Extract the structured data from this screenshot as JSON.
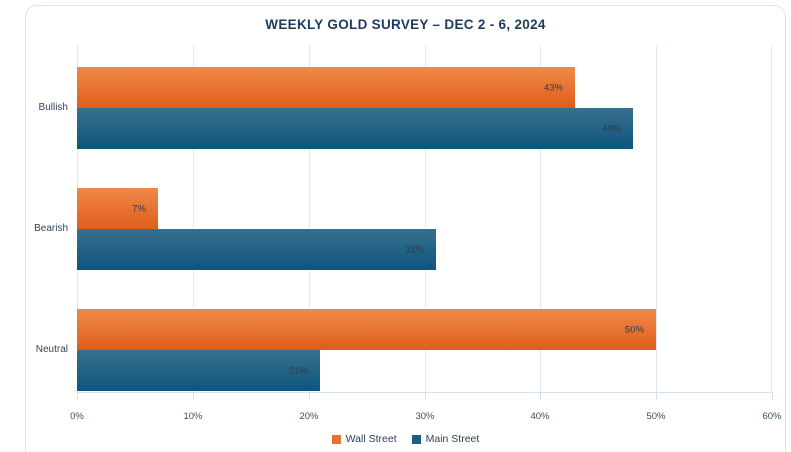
{
  "title": "WEEKLY GOLD SURVEY – DEC 2 - 6, 2024",
  "chart_data": {
    "type": "bar",
    "orientation": "horizontal",
    "title": "WEEKLY GOLD SURVEY – DEC 2 - 6, 2024",
    "categories": [
      "Bullish",
      "Bearish",
      "Neutral"
    ],
    "series": [
      {
        "name": "Wall Street",
        "values": [
          43,
          7,
          50
        ],
        "labels": [
          "43%",
          "7%",
          "50%"
        ],
        "color_top": "#f1894a",
        "color_bottom": "#de5e1a",
        "legend_color": "#e97132"
      },
      {
        "name": "Main Street",
        "values": [
          48,
          31,
          21
        ],
        "labels": [
          "48%",
          "31%",
          "21%"
        ],
        "color_top": "#38708f",
        "color_bottom": "#0e557c",
        "legend_color": "#195f7f"
      }
    ],
    "xlabel": "",
    "ylabel": "",
    "xlim": [
      0,
      60
    ],
    "xticks": {
      "values": [
        0,
        10,
        20,
        30,
        40,
        50,
        60
      ],
      "labels": [
        "0%",
        "10%",
        "20%",
        "30%",
        "40%",
        "50%",
        "60%"
      ]
    },
    "grid": "vertical",
    "legend_position": "bottom-center"
  },
  "colors": {
    "card_border": "#d8e6f2",
    "gridline": "#dcebf6",
    "axis_line": "#d3e3f0",
    "title_text": "#1c3a5f",
    "tick_text": "#3b4e63",
    "category_text": "#33465c",
    "bar_value_text": "#2e3b49"
  }
}
